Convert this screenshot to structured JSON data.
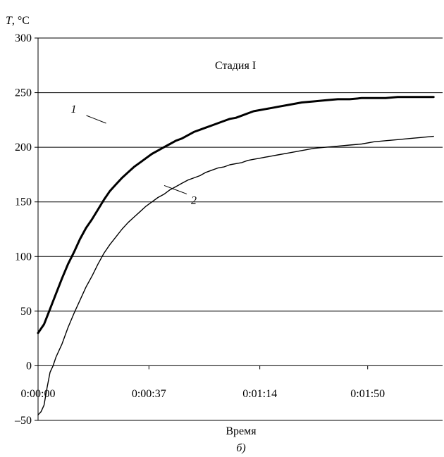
{
  "chart_data": {
    "type": "line",
    "ylabel_var": "T",
    "ylabel_unit": ", °C",
    "xlabel": "Время",
    "caption": "б)",
    "annotation": "Стадия I",
    "ylim": [
      -50,
      300
    ],
    "yticks": [
      -50,
      0,
      50,
      100,
      150,
      200,
      250,
      300
    ],
    "ytick_labels": [
      "–50",
      "0",
      "50",
      "100",
      "150",
      "200",
      "250",
      "300"
    ],
    "xlim": [
      0,
      135
    ],
    "xticks": [
      0,
      37,
      74,
      110
    ],
    "xtick_labels": [
      "0:00:00",
      "0:00:37",
      "0:01:14",
      "0:01:50"
    ],
    "grid": "horizontal",
    "series": [
      {
        "name": "1",
        "x": [
          0,
          2,
          4,
          6,
          8,
          10,
          12,
          14,
          16,
          18,
          20,
          22,
          24,
          26,
          28,
          30,
          32,
          34,
          36,
          38,
          40,
          42,
          44,
          46,
          48,
          50,
          52,
          54,
          56,
          58,
          60,
          62,
          64,
          66,
          68,
          70,
          72,
          74,
          76,
          78,
          80,
          84,
          88,
          92,
          96,
          100,
          104,
          108,
          112,
          116,
          120,
          124,
          128,
          132
        ],
        "values": [
          30,
          38,
          52,
          66,
          80,
          93,
          104,
          116,
          126,
          134,
          143,
          152,
          160,
          166,
          172,
          177,
          182,
          186,
          190,
          194,
          197,
          200,
          203,
          206,
          208,
          211,
          214,
          216,
          218,
          220,
          222,
          224,
          226,
          227,
          229,
          231,
          233,
          234,
          235,
          236,
          237,
          239,
          241,
          242,
          243,
          244,
          244,
          245,
          245,
          245,
          246,
          246,
          246,
          246
        ]
      },
      {
        "name": "2",
        "x": [
          0,
          1,
          2,
          3,
          4,
          5,
          6,
          8,
          10,
          12,
          14,
          16,
          18,
          20,
          22,
          24,
          26,
          28,
          30,
          32,
          34,
          36,
          38,
          40,
          42,
          44,
          46,
          48,
          50,
          52,
          54,
          56,
          58,
          60,
          62,
          64,
          66,
          68,
          70,
          72,
          74,
          76,
          78,
          80,
          84,
          88,
          92,
          96,
          100,
          104,
          108,
          112,
          116,
          120,
          124,
          128,
          132
        ],
        "values": [
          -45,
          -42,
          -36,
          -20,
          -6,
          0,
          8,
          20,
          35,
          48,
          60,
          72,
          82,
          93,
          103,
          111,
          118,
          125,
          131,
          136,
          141,
          146,
          150,
          154,
          157,
          161,
          164,
          167,
          170,
          172,
          174,
          177,
          179,
          181,
          182,
          184,
          185,
          186,
          188,
          189,
          190,
          191,
          192,
          193,
          195,
          197,
          199,
          200,
          201,
          202,
          203,
          205,
          206,
          207,
          208,
          209,
          210
        ]
      }
    ],
    "series_label_positions": [
      {
        "x": 22.7,
        "y": 222
      },
      {
        "x": 42.1,
        "y": 165
      }
    ]
  }
}
